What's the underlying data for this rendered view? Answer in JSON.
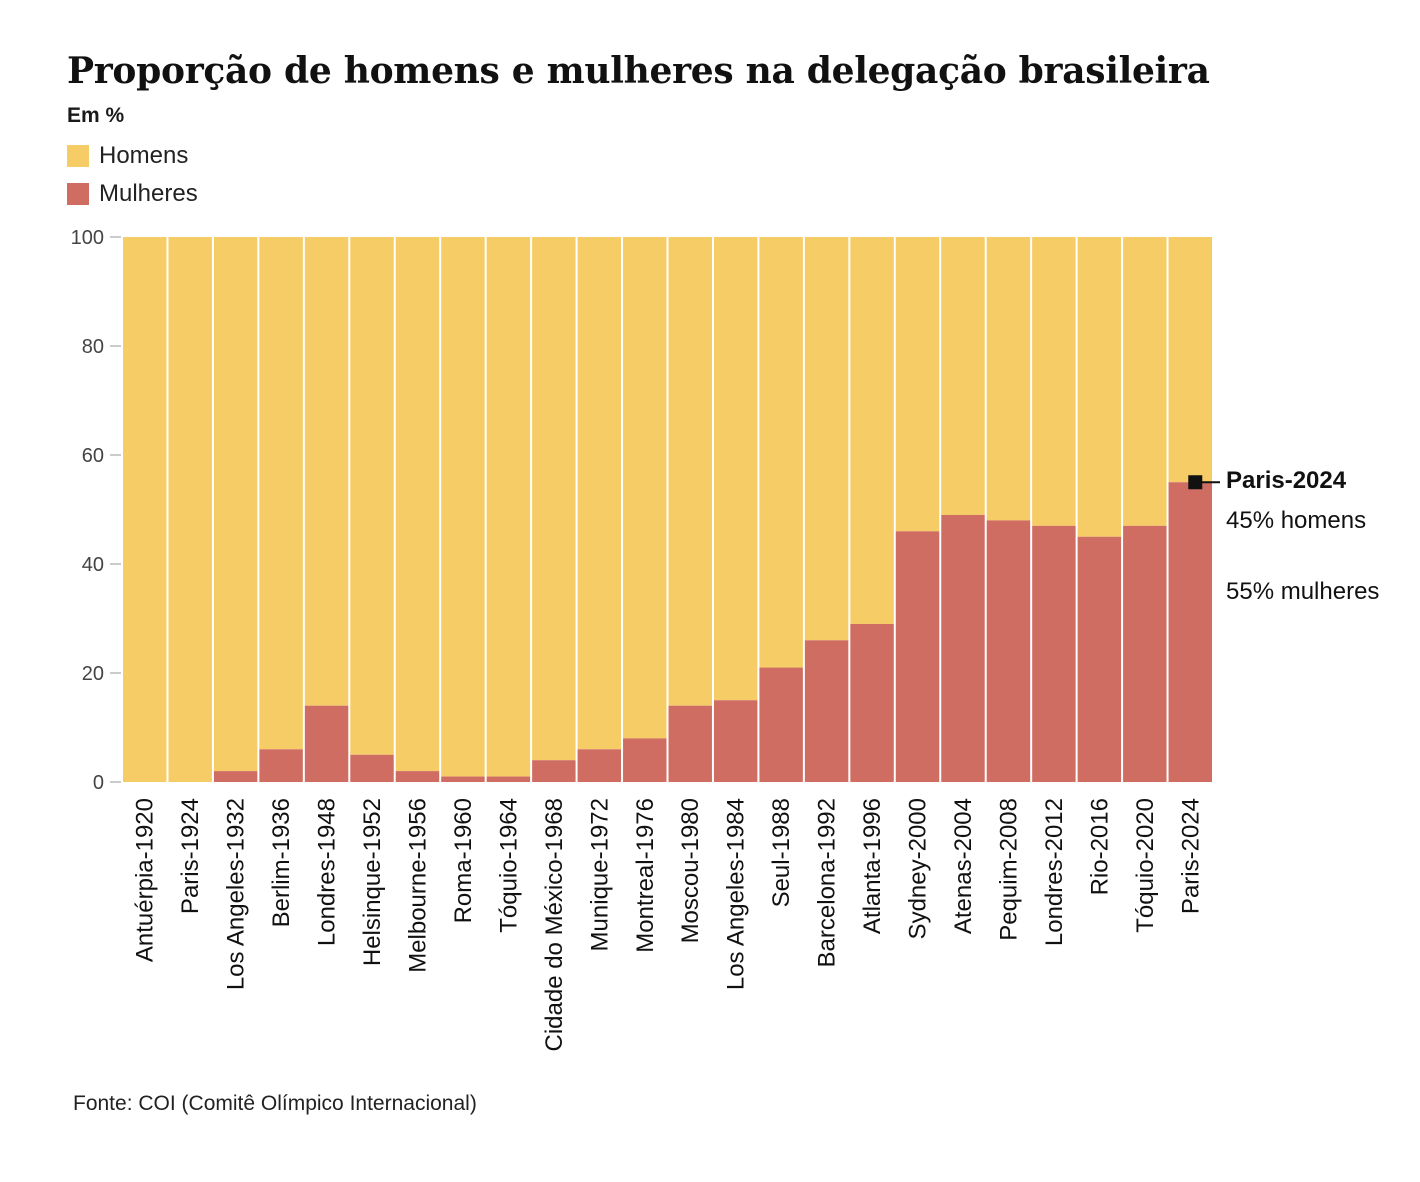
{
  "chart_data": {
    "type": "bar",
    "stacked": true,
    "title": "Proporção de homens e mulheres na delegação brasileira",
    "subtitle": "Em %",
    "categories": [
      "Antuérpia-1920",
      "Paris-1924",
      "Los Angeles-1932",
      "Berlim-1936",
      "Londres-1948",
      "Helsinque-1952",
      "Melbourne-1956",
      "Roma-1960",
      "Tóquio-1964",
      "Cidade do México-1968",
      "Munique-1972",
      "Montreal-1976",
      "Moscou-1980",
      "Los Angeles-1984",
      "Seul-1988",
      "Barcelona-1992",
      "Atlanta-1996",
      "Sydney-2000",
      "Atenas-2004",
      "Pequim-2008",
      "Londres-2012",
      "Rio-2016",
      "Tóquio-2020",
      "Paris-2024"
    ],
    "series": [
      {
        "name": "Mulheres",
        "color": "#d06d63",
        "values": [
          0,
          0,
          2,
          6,
          14,
          5,
          2,
          1,
          1,
          4,
          6,
          8,
          14,
          15,
          21,
          26,
          29,
          46,
          49,
          48,
          47,
          45,
          47,
          55
        ]
      },
      {
        "name": "Homens",
        "color": "#f5cc66",
        "values": [
          100,
          100,
          98,
          94,
          86,
          95,
          98,
          99,
          99,
          96,
          94,
          92,
          86,
          85,
          79,
          74,
          71,
          54,
          51,
          52,
          53,
          55,
          53,
          45
        ]
      }
    ],
    "ylim": [
      0,
      100
    ],
    "yticks": [
      0,
      20,
      40,
      60,
      80,
      100
    ],
    "legend": [
      "Homens",
      "Mulheres"
    ],
    "legend_position": "top-left",
    "grid": false,
    "annotation": {
      "category": "Paris-2024",
      "title": "Paris-2024",
      "men_text": "45% homens",
      "women_text": "55% mulheres"
    },
    "source": "Fonte: COI (Comitê Olímpico Internacional)"
  }
}
